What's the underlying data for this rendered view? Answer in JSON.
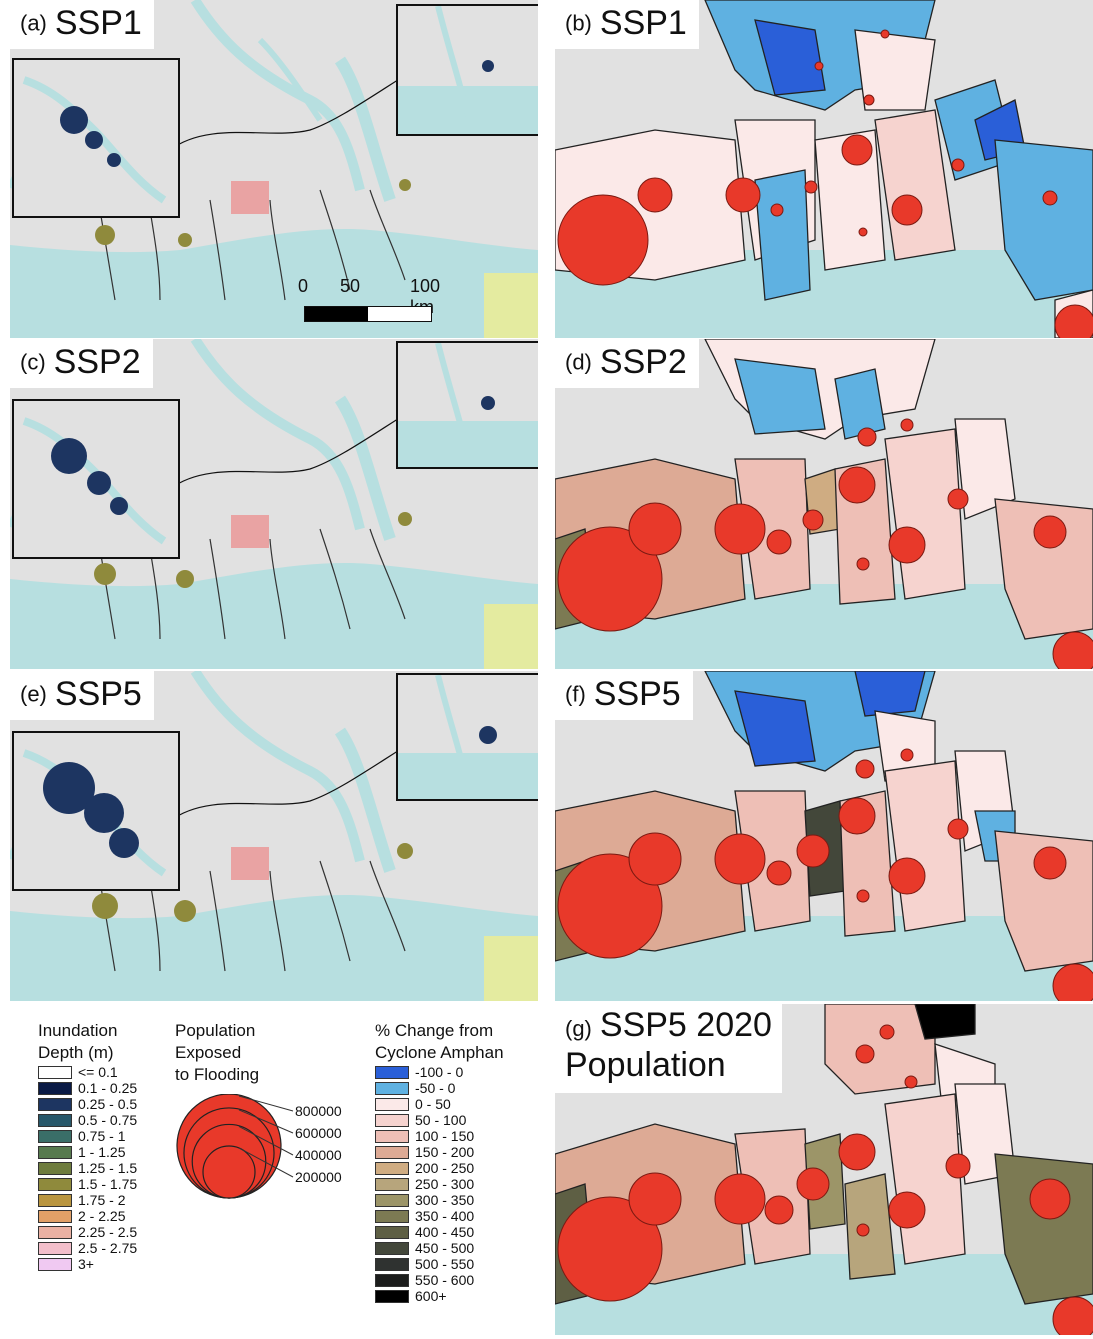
{
  "panels": [
    {
      "letter": "(a)",
      "scenario": "SSP1"
    },
    {
      "letter": "(b)",
      "scenario": "SSP1"
    },
    {
      "letter": "(c)",
      "scenario": "SSP2"
    },
    {
      "letter": "(d)",
      "scenario": "SSP2"
    },
    {
      "letter": "(e)",
      "scenario": "SSP5"
    },
    {
      "letter": "(f)",
      "scenario": "SSP5"
    },
    {
      "letter": "(g)",
      "scenario": "SSP5 2020",
      "scenario_line2": "Population"
    }
  ],
  "scale_bar": {
    "tick_0": "0",
    "tick_50": "50",
    "tick_100": "100 km"
  },
  "legend_depth": {
    "title_line1": "Inundation",
    "title_line2": "Depth (m)",
    "classes": [
      {
        "label": "<= 0.1",
        "color": "#ffffff"
      },
      {
        "label": "0.1 - 0.25",
        "color": "#0a1a45"
      },
      {
        "label": "0.25 - 0.5",
        "color": "#1d3561"
      },
      {
        "label": "0.5 - 0.75",
        "color": "#28586a"
      },
      {
        "label": "0.75 - 1",
        "color": "#3a6e68"
      },
      {
        "label": "1 - 1.25",
        "color": "#577a4e"
      },
      {
        "label": "1.25 - 1.5",
        "color": "#6e7c3e"
      },
      {
        "label": "1.5 - 1.75",
        "color": "#8f8a3c"
      },
      {
        "label": "1.75 - 2",
        "color": "#b9953f"
      },
      {
        "label": "2 - 2.25",
        "color": "#e1a067"
      },
      {
        "label": "2.25 - 2.5",
        "color": "#eab1a3"
      },
      {
        "label": "2.5 - 2.75",
        "color": "#f3bfcb"
      },
      {
        "label": "3+",
        "color": "#f0c9f2"
      }
    ]
  },
  "legend_population": {
    "title_line1": "Population",
    "title_line2": "Exposed",
    "title_line3": "to Flooding",
    "sizes": [
      "800000",
      "600000",
      "400000",
      "200000"
    ],
    "fill_color": "#e8392a"
  },
  "legend_change": {
    "title_line1": "% Change from",
    "title_line2": "Cyclone Amphan",
    "classes": [
      {
        "label": "-100 - 0",
        "color": "#2a5fd8"
      },
      {
        "label": "-50 - 0",
        "color": "#5fb1e1"
      },
      {
        "label": "0 - 50",
        "color": "#fbe9e8"
      },
      {
        "label": "50 - 100",
        "color": "#f6d3cf"
      },
      {
        "label": "100 - 150",
        "color": "#eebfb6"
      },
      {
        "label": "150 - 200",
        "color": "#ddaa95"
      },
      {
        "label": "200 - 250",
        "color": "#cfac82"
      },
      {
        "label": "250 - 300",
        "color": "#b7a57c"
      },
      {
        "label": "300 - 350",
        "color": "#9c9568"
      },
      {
        "label": "350 - 400",
        "color": "#7c7a53"
      },
      {
        "label": "400 - 450",
        "color": "#5e5f44"
      },
      {
        "label": "450 - 500",
        "color": "#43473a"
      },
      {
        "label": "500 - 550",
        "color": "#2f3230"
      },
      {
        "label": "550 - 600",
        "color": "#1c1d1c"
      },
      {
        "label": "600+",
        "color": "#000000"
      }
    ]
  },
  "colors": {
    "water": "#b7dfe0",
    "land": "#e1e1e1",
    "highlight_red": "#e9a3a3",
    "highlight_yellow": "#e4eba0"
  }
}
